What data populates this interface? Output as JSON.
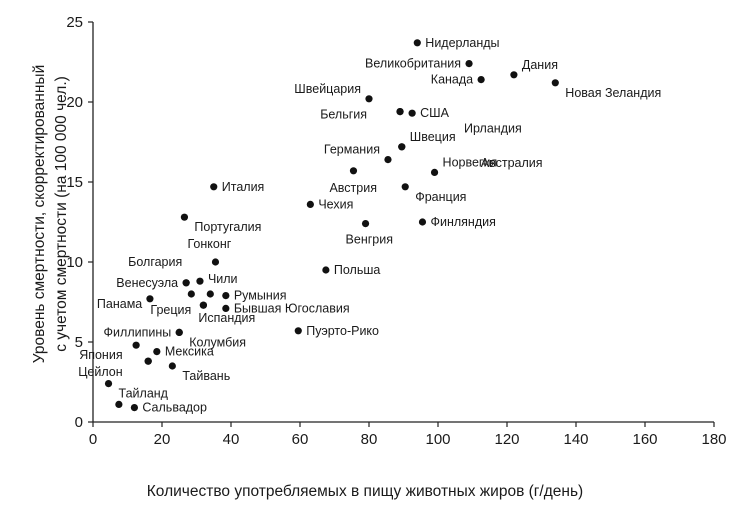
{
  "chart_data": {
    "type": "scatter",
    "title": "",
    "xlabel": "Количество употребляемых в пищу животных жиров (г/день)",
    "ylabel_line1": "Уровень смертности, скорректированный",
    "ylabel_line2": "с учетом смертности (на 100 000 чел.)",
    "xlim": [
      0,
      180
    ],
    "ylim": [
      0,
      25
    ],
    "xticks": [
      0,
      20,
      40,
      60,
      80,
      100,
      120,
      140,
      160,
      180
    ],
    "yticks": [
      0,
      5,
      10,
      15,
      20,
      25
    ],
    "grid": false,
    "marker_color": "#111111",
    "points": [
      {
        "label": "Нидерланды",
        "x": 94,
        "y": 23.7,
        "pos": "right"
      },
      {
        "label": "Великобритания",
        "x": 109,
        "y": 22.4,
        "pos": "left"
      },
      {
        "label": "Дания",
        "x": 122,
        "y": 21.7,
        "pos": "upright"
      },
      {
        "label": "Канада",
        "x": 112.5,
        "y": 21.4,
        "pos": "left"
      },
      {
        "label": "Новая Зеландия",
        "x": 134,
        "y": 21.2,
        "pos": "downright"
      },
      {
        "label": "Швейцария",
        "x": 80,
        "y": 20.2,
        "pos": "upleft"
      },
      {
        "label": "Ирландия",
        "x": 89,
        "y": 19.4,
        "pos": "ireland"
      },
      {
        "label": "Бельгия",
        "x": 89,
        "y": 19.4,
        "pos": "belgium"
      },
      {
        "label": "США",
        "x": 92.5,
        "y": 19.3,
        "pos": "right"
      },
      {
        "label": "Австралия",
        "x": 89.5,
        "y": 17.2,
        "pos": "australia"
      },
      {
        "label": "Швеция",
        "x": 89.5,
        "y": 17.2,
        "pos": "upright"
      },
      {
        "label": "Германия",
        "x": 85.5,
        "y": 16.4,
        "pos": "upleft"
      },
      {
        "label": "Норвегия",
        "x": 99,
        "y": 15.6,
        "pos": "upright"
      },
      {
        "label": "Австрия",
        "x": 75.5,
        "y": 15.7,
        "pos": "austria"
      },
      {
        "label": "Франция",
        "x": 90.5,
        "y": 14.7,
        "pos": "downright"
      },
      {
        "label": "Италия",
        "x": 35,
        "y": 14.7,
        "pos": "right"
      },
      {
        "label": "Чехия",
        "x": 63,
        "y": 13.6,
        "pos": "right"
      },
      {
        "label": "Португалия",
        "x": 26.5,
        "y": 12.8,
        "pos": "downright"
      },
      {
        "label": "Финляндия",
        "x": 95.5,
        "y": 12.5,
        "pos": "right"
      },
      {
        "label": "Венгрия",
        "x": 79,
        "y": 12.4,
        "pos": "below"
      },
      {
        "label": "Гонконг",
        "x": 35.5,
        "y": 10.0,
        "pos": "above"
      },
      {
        "label": "Польша",
        "x": 67.5,
        "y": 9.5,
        "pos": "right"
      },
      {
        "label": "Болгария",
        "x": 27,
        "y": 8.7,
        "pos": "bulgaria"
      },
      {
        "label": "Венесуэла",
        "x": 27,
        "y": 8.7,
        "pos": "left"
      },
      {
        "label": "Чили",
        "x": 31,
        "y": 8.8,
        "pos": "chile"
      },
      {
        "label": "",
        "x": 28.5,
        "y": 8.0,
        "pos": "none"
      },
      {
        "label": "",
        "x": 34,
        "y": 8.0,
        "pos": "none"
      },
      {
        "label": "Румыния",
        "x": 38.5,
        "y": 7.9,
        "pos": "right"
      },
      {
        "label": "Панама",
        "x": 16.5,
        "y": 7.7,
        "pos": "panama"
      },
      {
        "label": "Греция",
        "x": 32,
        "y": 7.3,
        "pos": "greece"
      },
      {
        "label": "Испандия",
        "x": 32,
        "y": 7.3,
        "pos": "spain"
      },
      {
        "label": "Бывшая Югославия",
        "x": 38.5,
        "y": 7.1,
        "pos": "right"
      },
      {
        "label": "Филлипины",
        "x": 25,
        "y": 5.6,
        "pos": "left"
      },
      {
        "label": "Колумбия",
        "x": 25,
        "y": 5.6,
        "pos": "downright"
      },
      {
        "label": "Пуэрто-Рико",
        "x": 59.5,
        "y": 5.7,
        "pos": "right"
      },
      {
        "label": "",
        "x": 12.5,
        "y": 4.8,
        "pos": "none"
      },
      {
        "label": "Мексика",
        "x": 18.5,
        "y": 4.4,
        "pos": "right"
      },
      {
        "label": "Япония",
        "x": 16,
        "y": 3.8,
        "pos": "japan"
      },
      {
        "label": "Тайвань",
        "x": 23,
        "y": 3.5,
        "pos": "downright"
      },
      {
        "label": "Цейлон",
        "x": 16,
        "y": 3.8,
        "pos": "ceylon"
      },
      {
        "label": "Тайланд",
        "x": 4.5,
        "y": 2.4,
        "pos": "downright"
      },
      {
        "label": "",
        "x": 7.5,
        "y": 1.1,
        "pos": "none"
      },
      {
        "label": "Сальвадор",
        "x": 12,
        "y": 0.9,
        "pos": "right"
      }
    ]
  }
}
